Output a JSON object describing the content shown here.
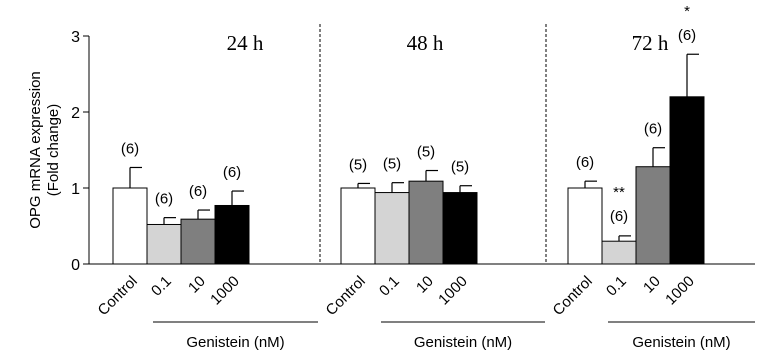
{
  "chart_data": {
    "type": "bar",
    "ylabel": "OPG mRNA expression",
    "ylabel2": "(Fold change)",
    "ylim": [
      0,
      3
    ],
    "yticks": [
      "0",
      "1",
      "2",
      "3"
    ],
    "group_xlabel": "Genistein (nM)",
    "categories": [
      "Control",
      "0.1",
      "10",
      "1000"
    ],
    "colors": [
      "#ffffff",
      "#d4d4d4",
      "#7f7f7f",
      "#000000"
    ],
    "panels": [
      {
        "title": "24 h",
        "values": [
          1.0,
          0.52,
          0.59,
          0.77
        ],
        "errors": [
          0.27,
          0.09,
          0.12,
          0.19
        ],
        "n_labels": [
          "(6)",
          "(6)",
          "(6)",
          "(6)"
        ],
        "sig": [
          "",
          "",
          "",
          ""
        ]
      },
      {
        "title": "48 h",
        "values": [
          1.0,
          0.94,
          1.09,
          0.94
        ],
        "errors": [
          0.06,
          0.13,
          0.14,
          0.09
        ],
        "n_labels": [
          "(5)",
          "(5)",
          "(5)",
          "(5)"
        ],
        "sig": [
          "",
          "",
          "",
          ""
        ]
      },
      {
        "title": "72 h",
        "values": [
          1.0,
          0.3,
          1.28,
          2.2
        ],
        "errors": [
          0.09,
          0.07,
          0.25,
          0.56
        ],
        "n_labels": [
          "(6)",
          "(6)",
          "(6)",
          "(6)"
        ],
        "sig": [
          "",
          "**",
          "",
          "*"
        ]
      }
    ]
  }
}
